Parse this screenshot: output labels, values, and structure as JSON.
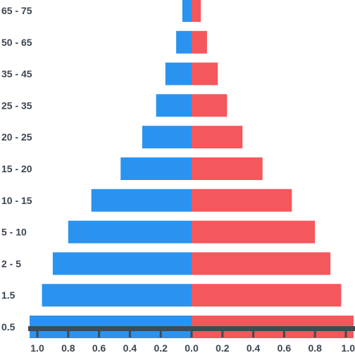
{
  "chart_data": {
    "type": "bar",
    "orientation": "horizontal-diverging",
    "categories": [
      "65 - 75",
      "50 - 65",
      "35 - 45",
      "25 - 35",
      "20 - 25",
      "15 - 20",
      "10 - 15",
      "5 - 10",
      "2 - 5",
      "1.5",
      "0.5"
    ],
    "series": [
      {
        "side": "left",
        "color": "#2a93ef",
        "values": [
          0.06,
          0.1,
          0.17,
          0.23,
          0.32,
          0.46,
          0.65,
          0.8,
          0.9,
          0.97,
          1.05
        ]
      },
      {
        "side": "right",
        "color": "#f4575c",
        "values": [
          0.06,
          0.1,
          0.17,
          0.23,
          0.33,
          0.46,
          0.65,
          0.8,
          0.9,
          0.97,
          1.05
        ]
      }
    ],
    "x_tick_labels": [
      "1.0",
      "0.8",
      "0.6",
      "0.4",
      "0.2",
      "0.0",
      "0.2",
      "0.4",
      "0.6",
      "0.8",
      "1.0"
    ],
    "xlim": [
      -1.0,
      1.0
    ],
    "title": "",
    "xlabel": "",
    "ylabel": "",
    "grid": false,
    "axis_color": "#3f4a55"
  }
}
